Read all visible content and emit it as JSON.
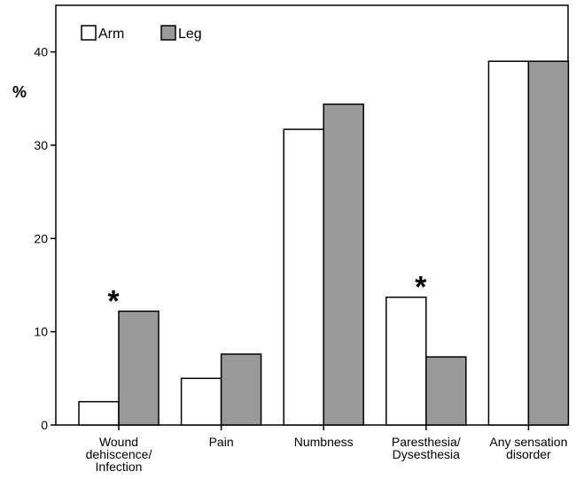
{
  "chart_data": {
    "type": "bar",
    "ylabel": "%",
    "xlabel": "",
    "ylim": [
      0,
      45
    ],
    "yticks": [
      0,
      10,
      20,
      30,
      40
    ],
    "categories": [
      [
        "Wound",
        "dehiscence/",
        "Infection"
      ],
      [
        "Pain"
      ],
      [
        "Numbness"
      ],
      [
        "Paresthesia/",
        "Dysesthesia"
      ],
      [
        "Any sensation",
        "disorder"
      ]
    ],
    "series": [
      {
        "name": "Arm",
        "color": "#ffffff",
        "values": [
          2.5,
          5.0,
          31.7,
          13.7,
          39.0
        ]
      },
      {
        "name": "Leg",
        "color": "#999999",
        "values": [
          12.2,
          7.6,
          34.4,
          7.3,
          39.0
        ]
      }
    ],
    "annotations": [
      {
        "category_index": 0,
        "text": "*"
      },
      {
        "category_index": 3,
        "text": "*"
      }
    ],
    "legend_position": "top-left",
    "grid": false
  }
}
